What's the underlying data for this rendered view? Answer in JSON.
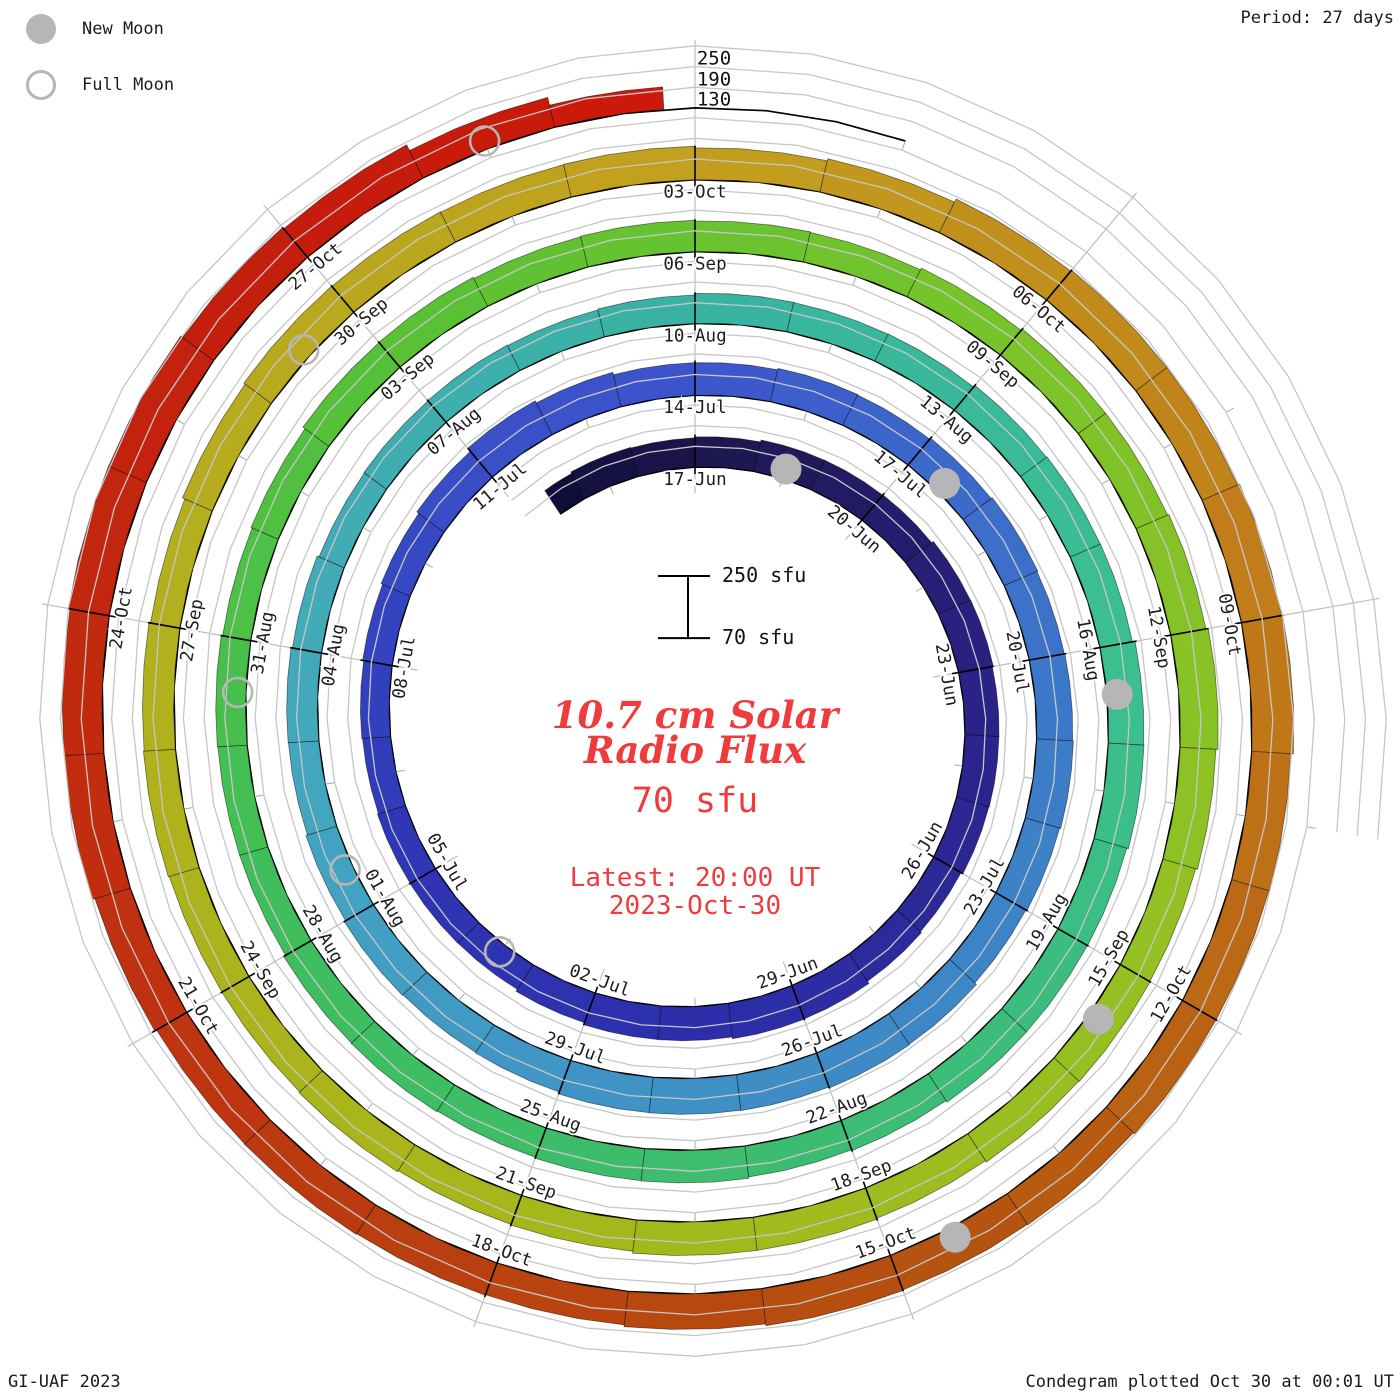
{
  "legend": {
    "new_moon_label": "New Moon",
    "full_moon_label": "Full Moon",
    "moon_color": "#b6b6b6"
  },
  "corners": {
    "period_label": "Period: 27 days",
    "credit_left": "GI-UAF 2023",
    "credit_right": "Condegram plotted Oct 30 at 00:01 UT"
  },
  "center_panel": {
    "title_line1": "10.7 cm Solar",
    "title_line2": "Radio Flux",
    "current_value": "70 sfu",
    "latest_line1": "Latest: 20:00 UT",
    "latest_line2": "2023-Oct-30",
    "accent_color": "#ef3b3c"
  },
  "scale_bar": {
    "top_label": "250 sfu",
    "bottom_label": "70 sfu"
  },
  "radial_axis": {
    "tick_labels": [
      "250",
      "190",
      "130"
    ],
    "tick_values": [
      250,
      190,
      130
    ],
    "baseline_value": 70
  },
  "chart_data": {
    "type": "spiral_bar_condegram",
    "title": "10.7 cm Solar Radio Flux",
    "units": "sfu",
    "period_days": 27,
    "angle_per_day_deg": 13.333,
    "start_date": "2023-06-14",
    "end_date": "2023-10-29",
    "ylim": [
      70,
      250
    ],
    "gridline_values": [
      130,
      190,
      250
    ],
    "date_labels": [
      {
        "date": "2023-06-17",
        "text": "17-Jun"
      },
      {
        "date": "2023-06-20",
        "text": "20-Jun"
      },
      {
        "date": "2023-06-23",
        "text": "23-Jun"
      },
      {
        "date": "2023-06-26",
        "text": "26-Jun"
      },
      {
        "date": "2023-06-29",
        "text": "29-Jun"
      },
      {
        "date": "2023-07-02",
        "text": "02-Jul"
      },
      {
        "date": "2023-07-05",
        "text": "05-Jul"
      },
      {
        "date": "2023-07-08",
        "text": "08-Jul"
      },
      {
        "date": "2023-07-11",
        "text": "11-Jul"
      },
      {
        "date": "2023-07-14",
        "text": "14-Jul"
      },
      {
        "date": "2023-07-17",
        "text": "17-Jul"
      },
      {
        "date": "2023-07-20",
        "text": "20-Jul"
      },
      {
        "date": "2023-07-23",
        "text": "23-Jul"
      },
      {
        "date": "2023-07-26",
        "text": "26-Jul"
      },
      {
        "date": "2023-07-29",
        "text": "29-Jul"
      },
      {
        "date": "2023-08-01",
        "text": "01-Aug"
      },
      {
        "date": "2023-08-04",
        "text": "04-Aug"
      },
      {
        "date": "2023-08-07",
        "text": "07-Aug"
      },
      {
        "date": "2023-08-10",
        "text": "10-Aug"
      },
      {
        "date": "2023-08-13",
        "text": "13-Aug"
      },
      {
        "date": "2023-08-16",
        "text": "16-Aug"
      },
      {
        "date": "2023-08-19",
        "text": "19-Aug"
      },
      {
        "date": "2023-08-22",
        "text": "22-Aug"
      },
      {
        "date": "2023-08-25",
        "text": "25-Aug"
      },
      {
        "date": "2023-08-28",
        "text": "28-Aug"
      },
      {
        "date": "2023-08-31",
        "text": "31-Aug"
      },
      {
        "date": "2023-09-03",
        "text": "03-Sep"
      },
      {
        "date": "2023-09-06",
        "text": "06-Sep"
      },
      {
        "date": "2023-09-09",
        "text": "09-Sep"
      },
      {
        "date": "2023-09-12",
        "text": "12-Sep"
      },
      {
        "date": "2023-09-15",
        "text": "15-Sep"
      },
      {
        "date": "2023-09-18",
        "text": "18-Sep"
      },
      {
        "date": "2023-09-21",
        "text": "21-Sep"
      },
      {
        "date": "2023-09-24",
        "text": "24-Sep"
      },
      {
        "date": "2023-09-27",
        "text": "27-Sep"
      },
      {
        "date": "2023-09-30",
        "text": "30-Sep"
      },
      {
        "date": "2023-10-03",
        "text": "03-Oct"
      },
      {
        "date": "2023-10-06",
        "text": "06-Oct"
      },
      {
        "date": "2023-10-09",
        "text": "09-Oct"
      },
      {
        "date": "2023-10-12",
        "text": "12-Oct"
      },
      {
        "date": "2023-10-15",
        "text": "15-Oct"
      },
      {
        "date": "2023-10-18",
        "text": "18-Oct"
      },
      {
        "date": "2023-10-21",
        "text": "21-Oct"
      },
      {
        "date": "2023-10-24",
        "text": "24-Oct"
      },
      {
        "date": "2023-10-27",
        "text": "27-Oct"
      }
    ],
    "flux_sfu": [
      {
        "date": "2023-06-14",
        "sfu": 150
      },
      {
        "date": "2023-06-17",
        "sfu": 160
      },
      {
        "date": "2023-06-20",
        "sfu": 166
      },
      {
        "date": "2023-06-23",
        "sfu": 170
      },
      {
        "date": "2023-06-26",
        "sfu": 164
      },
      {
        "date": "2023-06-29",
        "sfu": 172
      },
      {
        "date": "2023-07-02",
        "sfu": 160
      },
      {
        "date": "2023-07-05",
        "sfu": 153
      },
      {
        "date": "2023-07-08",
        "sfu": 152
      },
      {
        "date": "2023-07-11",
        "sfu": 178
      },
      {
        "date": "2023-07-14",
        "sfu": 163
      },
      {
        "date": "2023-07-17",
        "sfu": 170
      },
      {
        "date": "2023-07-20",
        "sfu": 177
      },
      {
        "date": "2023-07-23",
        "sfu": 171
      },
      {
        "date": "2023-07-26",
        "sfu": 176
      },
      {
        "date": "2023-07-29",
        "sfu": 169
      },
      {
        "date": "2023-08-01",
        "sfu": 161
      },
      {
        "date": "2023-08-04",
        "sfu": 154
      },
      {
        "date": "2023-08-07",
        "sfu": 150
      },
      {
        "date": "2023-08-10",
        "sfu": 153
      },
      {
        "date": "2023-08-13",
        "sfu": 162
      },
      {
        "date": "2023-08-16",
        "sfu": 171
      },
      {
        "date": "2023-08-19",
        "sfu": 167
      },
      {
        "date": "2023-08-22",
        "sfu": 163
      },
      {
        "date": "2023-08-25",
        "sfu": 161
      },
      {
        "date": "2023-08-28",
        "sfu": 157
      },
      {
        "date": "2023-08-31",
        "sfu": 154
      },
      {
        "date": "2023-09-03",
        "sfu": 162
      },
      {
        "date": "2023-09-06",
        "sfu": 158
      },
      {
        "date": "2023-09-09",
        "sfu": 166
      },
      {
        "date": "2023-09-12",
        "sfu": 176
      },
      {
        "date": "2023-09-15",
        "sfu": 169
      },
      {
        "date": "2023-09-18",
        "sfu": 164
      },
      {
        "date": "2023-09-21",
        "sfu": 159
      },
      {
        "date": "2023-09-24",
        "sfu": 163
      },
      {
        "date": "2023-09-27",
        "sfu": 157
      },
      {
        "date": "2023-09-30",
        "sfu": 170
      },
      {
        "date": "2023-10-03",
        "sfu": 164
      },
      {
        "date": "2023-10-06",
        "sfu": 180
      },
      {
        "date": "2023-10-09",
        "sfu": 190
      },
      {
        "date": "2023-10-12",
        "sfu": 179
      },
      {
        "date": "2023-10-15",
        "sfu": 174
      },
      {
        "date": "2023-10-18",
        "sfu": 169
      },
      {
        "date": "2023-10-21",
        "sfu": 175
      },
      {
        "date": "2023-10-24",
        "sfu": 190
      },
      {
        "date": "2023-10-27",
        "sfu": 180
      },
      {
        "date": "2023-10-29",
        "sfu": 133
      }
    ],
    "colormap": [
      {
        "date": "2023-06-14",
        "color": "#0e0c33"
      },
      {
        "date": "2023-06-17",
        "color": "#1c164e"
      },
      {
        "date": "2023-06-23",
        "color": "#2a2183"
      },
      {
        "date": "2023-06-29",
        "color": "#2c2da6"
      },
      {
        "date": "2023-07-05",
        "color": "#2e35b4"
      },
      {
        "date": "2023-07-11",
        "color": "#394fc8"
      },
      {
        "date": "2023-07-14",
        "color": "#3c55cb"
      },
      {
        "date": "2023-07-17",
        "color": "#3b68ca"
      },
      {
        "date": "2023-07-23",
        "color": "#3d83c6"
      },
      {
        "date": "2023-07-29",
        "color": "#3f94c5"
      },
      {
        "date": "2023-08-01",
        "color": "#42a0c2"
      },
      {
        "date": "2023-08-04",
        "color": "#44a9ba"
      },
      {
        "date": "2023-08-10",
        "color": "#38b3a2"
      },
      {
        "date": "2023-08-16",
        "color": "#3bbf90"
      },
      {
        "date": "2023-08-22",
        "color": "#3cbc72"
      },
      {
        "date": "2023-08-28",
        "color": "#3ebe5e"
      },
      {
        "date": "2023-09-03",
        "color": "#57c136"
      },
      {
        "date": "2023-09-09",
        "color": "#79c42a"
      },
      {
        "date": "2023-09-15",
        "color": "#95c022"
      },
      {
        "date": "2023-09-21",
        "color": "#a6b71a"
      },
      {
        "date": "2023-09-27",
        "color": "#b2b01e"
      },
      {
        "date": "2023-10-03",
        "color": "#c2a01e"
      },
      {
        "date": "2023-10-09",
        "color": "#c07a18"
      },
      {
        "date": "2023-10-15",
        "color": "#b4500f"
      },
      {
        "date": "2023-10-21",
        "color": "#bf3310"
      },
      {
        "date": "2023-10-27",
        "color": "#c41d0d"
      },
      {
        "date": "2023-10-29",
        "color": "#cb1a0c"
      }
    ],
    "new_moon_dates": [
      "2023-06-18",
      "2023-07-17",
      "2023-08-16",
      "2023-09-15",
      "2023-10-14"
    ],
    "full_moon_dates": [
      "2023-07-03",
      "2023-08-01",
      "2023-08-30",
      "2023-09-29",
      "2023-10-28"
    ]
  }
}
